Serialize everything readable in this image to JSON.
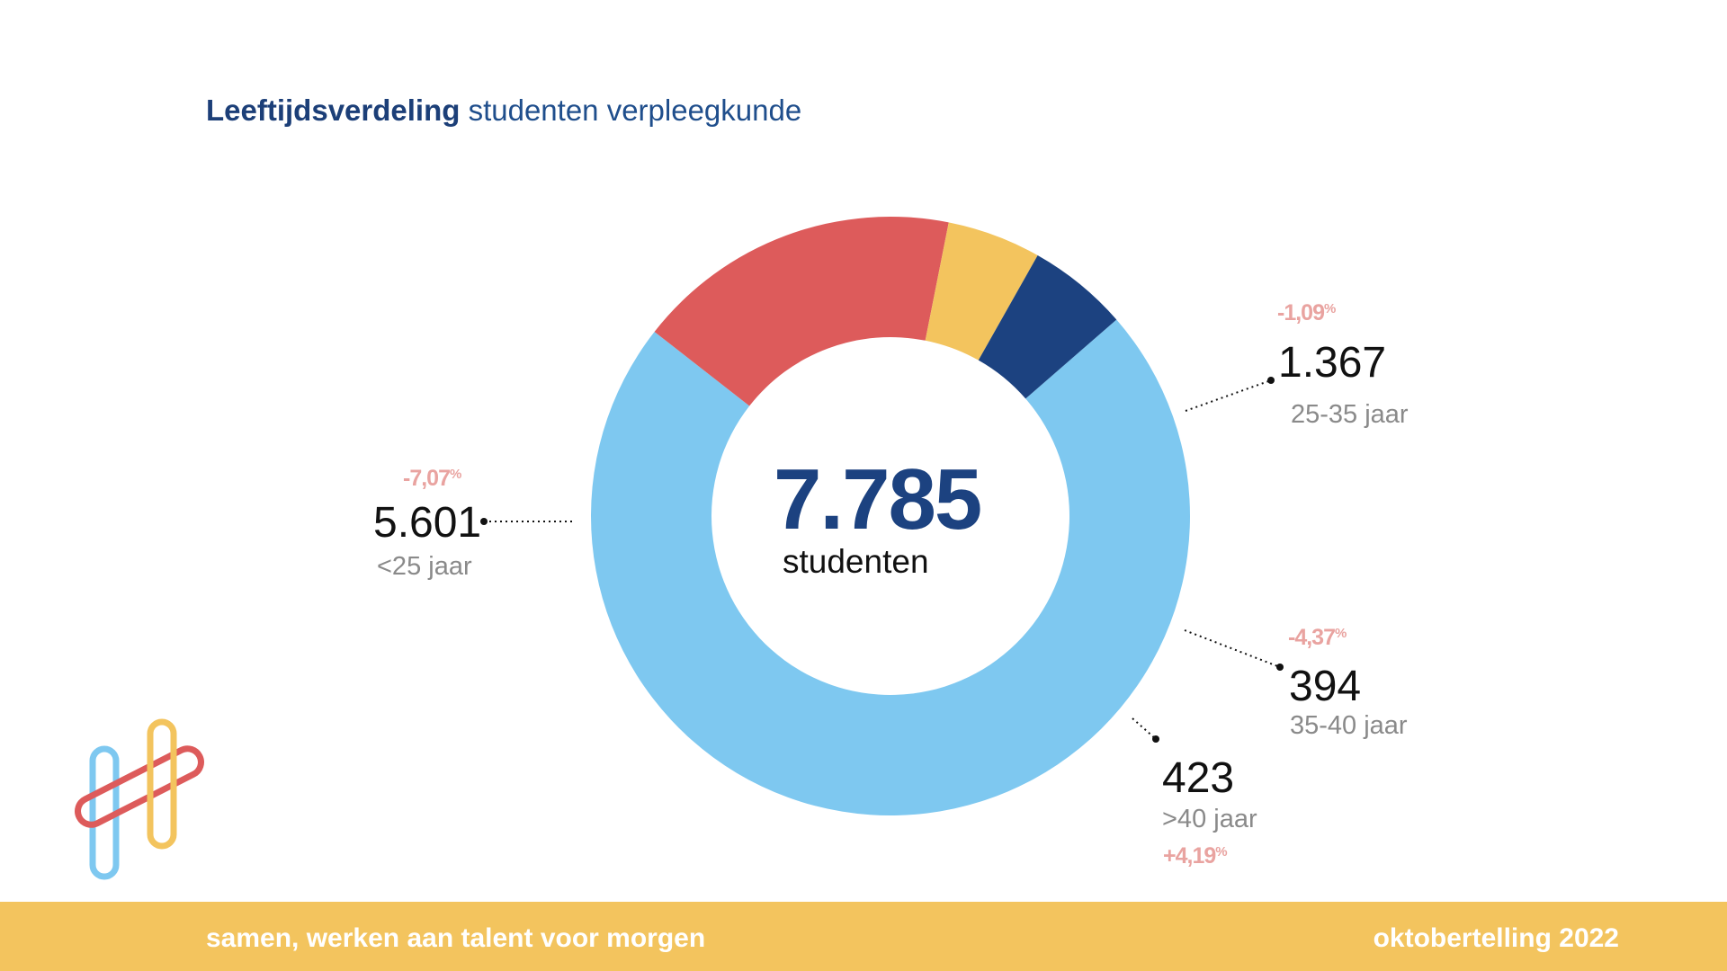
{
  "header": {
    "title_bold": "Leeftijdsverdeling",
    "title_rest": " studenten verpleegkunde"
  },
  "center": {
    "total": "7.785",
    "unit": "studenten"
  },
  "chart_data": {
    "type": "pie",
    "style": "donut",
    "total": 7785,
    "slices": [
      {
        "label": "<25 jaar",
        "value": 5601,
        "value_label": "5.601",
        "change": "-7,07",
        "color": "#7ec8f0"
      },
      {
        "label": "25-35 jaar",
        "value": 1367,
        "value_label": "1.367",
        "change": "-1,09",
        "color": "#dd5b5b"
      },
      {
        "label": "35-40 jaar",
        "value": 394,
        "value_label": "394",
        "change": "-4,37",
        "color": "#f3c45e"
      },
      {
        "label": ">40 jaar",
        "value": 423,
        "value_label": "423",
        "change": "+4,19",
        "color": "#1c4280"
      }
    ]
  },
  "footer": {
    "tagline": "samen, werken aan talent voor morgen",
    "edition": "oktobertelling 2022"
  },
  "logo": {
    "icon": "logo-icon",
    "colors": [
      "#7ec8f0",
      "#dd5b5b",
      "#f3c45e"
    ]
  }
}
